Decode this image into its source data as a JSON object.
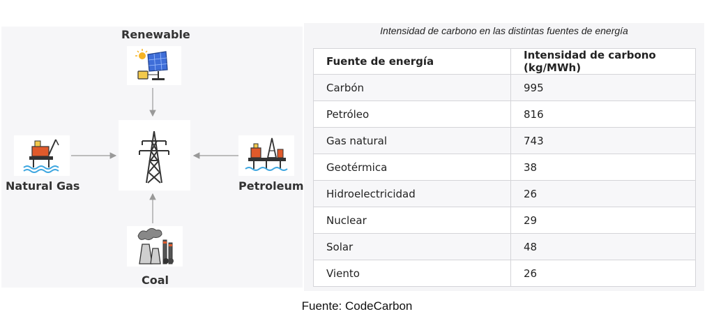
{
  "diagram": {
    "center_icon": "power-tower-icon",
    "sources": {
      "renewable": {
        "label": "Renewable",
        "icon": "solar-panel-icon"
      },
      "natural_gas": {
        "label": "Natural Gas",
        "icon": "offshore-rig-icon"
      },
      "petroleum": {
        "label": "Petroleum",
        "icon": "oil-platform-icon"
      },
      "coal": {
        "label": "Coal",
        "icon": "coal-plant-icon"
      }
    }
  },
  "table": {
    "title": "Intensidad de carbono en las distintas fuentes de energía",
    "headers": [
      "Fuente de energía",
      "Intensidad de carbono (kg/MWh)"
    ],
    "rows": [
      [
        "Carbón",
        "995"
      ],
      [
        "Petróleo",
        "816"
      ],
      [
        "Gas natural",
        "743"
      ],
      [
        "Geotérmica",
        "38"
      ],
      [
        "Hidroelectricidad",
        "26"
      ],
      [
        "Nuclear",
        "29"
      ],
      [
        "Solar",
        "48"
      ],
      [
        "Viento",
        "26"
      ]
    ]
  },
  "caption": "Fuente: CodeCarbon"
}
